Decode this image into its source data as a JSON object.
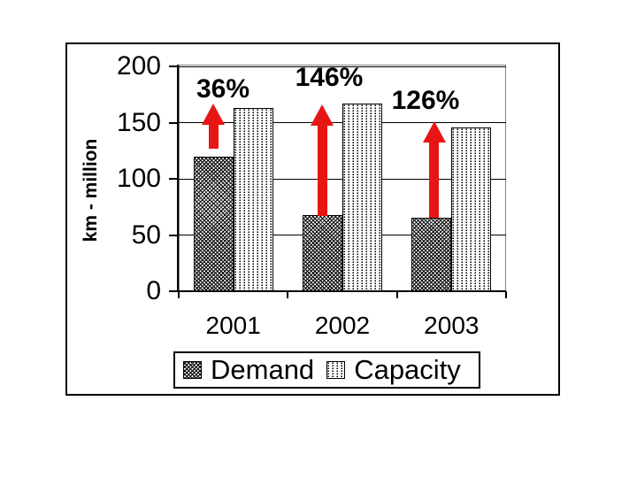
{
  "page": {
    "background": "#ffffff"
  },
  "chart_data": {
    "type": "bar",
    "title": "",
    "ylabel": "km - million",
    "xlabel": "",
    "categories": [
      "2001",
      "2002",
      "2003"
    ],
    "series": [
      {
        "name": "Demand",
        "pattern": "dark-diagonal-crosshatch",
        "values": [
          120,
          68,
          65
        ]
      },
      {
        "name": "Capacity",
        "pattern": "light-vertical-dots",
        "values": [
          163,
          167,
          146
        ]
      }
    ],
    "yticks": [
      0,
      50,
      100,
      150,
      200
    ],
    "ylim": [
      0,
      200
    ],
    "grid": true,
    "legend": {
      "position": "bottom",
      "entries": [
        "Demand",
        "Capacity"
      ]
    },
    "annotations": [
      {
        "label": "36%",
        "arrow_from_value": 127,
        "arrow_to_value": 167,
        "label_cx": 252,
        "label_top": 84,
        "arrow_dx": 0
      },
      {
        "label": "146%",
        "arrow_from_value": 67,
        "arrow_to_value": 166,
        "label_cx": 372,
        "label_top": 71,
        "arrow_dx": 0
      },
      {
        "label": "126%",
        "arrow_from_value": 65,
        "arrow_to_value": 151,
        "label_cx": 481,
        "label_top": 97,
        "arrow_dx": 3
      }
    ],
    "colors": {
      "arrow_red": "#e81515",
      "grid_line": "#000000",
      "plot_border": "#808080",
      "frame_border": "#000000",
      "text": "#000000",
      "background": "#ffffff"
    }
  }
}
